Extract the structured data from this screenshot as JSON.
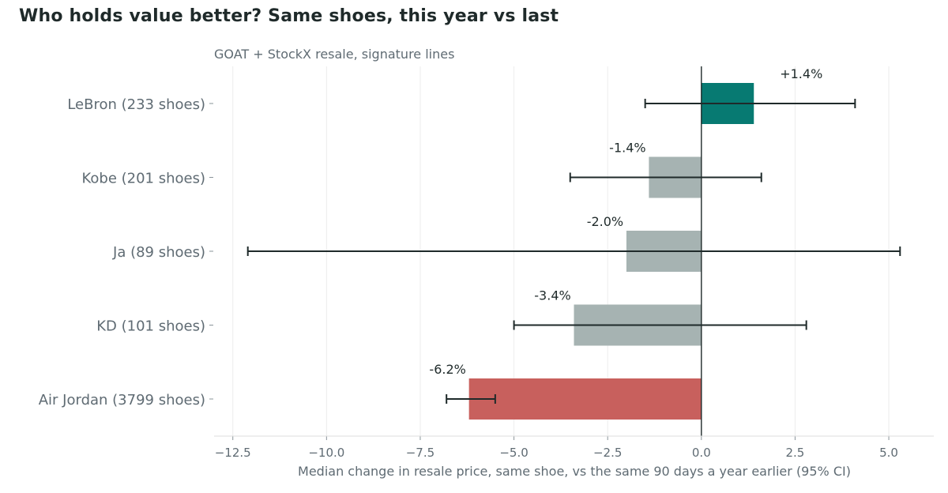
{
  "chart_data": {
    "type": "bar",
    "orientation": "horizontal",
    "title": "Who holds value better? Same shoes, this year vs last",
    "subtitle": "GOAT + StockX resale, signature lines",
    "xlabel": "Median change in resale price, same shoe, vs the same 90 days a year earlier (95% CI)",
    "xlim": [
      -13.0,
      6.2
    ],
    "xticks": [
      -12.5,
      -10.0,
      -7.5,
      -5.0,
      -2.5,
      0.0,
      2.5,
      5.0
    ],
    "xtick_labels": [
      "−12.5",
      "−10.0",
      "−7.5",
      "−5.0",
      "−2.5",
      "0.0",
      "2.5",
      "5.0"
    ],
    "grid": true,
    "categories": [
      "LeBron  (233 shoes)",
      "Kobe  (201 shoes)",
      "Ja  (89 shoes)",
      "KD  (101 shoes)",
      "Air Jordan  (3799 shoes)"
    ],
    "values": [
      1.4,
      -1.4,
      -2.0,
      -3.4,
      -6.2
    ],
    "ci_low": [
      -1.5,
      -3.5,
      -12.1,
      -5.0,
      -6.8
    ],
    "ci_high": [
      4.1,
      1.6,
      5.3,
      2.8,
      -5.5
    ],
    "data_labels": [
      "+1.4%",
      "-1.4%",
      "-2.0%",
      "-3.4%",
      "-6.2%"
    ],
    "colors": [
      "#077a72",
      "#a6b3b2",
      "#a6b3b2",
      "#a6b3b2",
      "#c8605d"
    ]
  }
}
